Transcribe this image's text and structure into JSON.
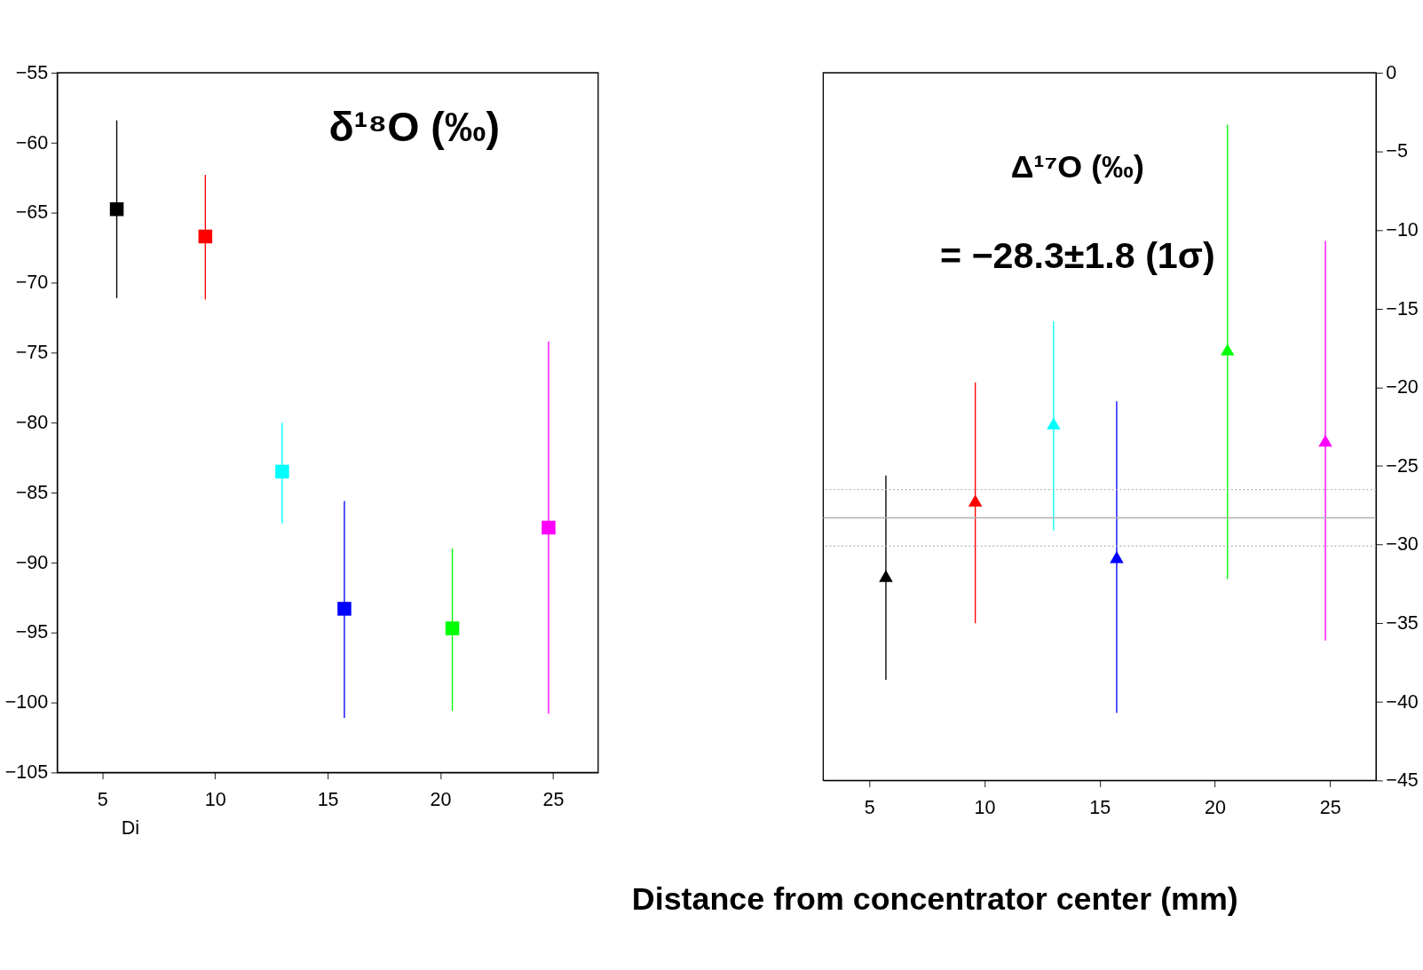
{
  "chart_data": [
    {
      "type": "scatter",
      "xlabel": "Di",
      "x": [
        5.64,
        9.57,
        12.98,
        15.74,
        20.53,
        24.8
      ],
      "values": [
        -64.75,
        -66.7,
        -83.5,
        -93.3,
        -94.7,
        -87.5
      ],
      "colors": [
        "#000000",
        "#ff0000",
        "#00ffff",
        "#0000ff",
        "#00ff00",
        "#ff00ff"
      ],
      "errors": [
        [
          -71.1,
          -58.4
        ],
        [
          -71.2,
          -62.3
        ],
        [
          -87.2,
          -80.0
        ],
        [
          -101.1,
          -85.6
        ],
        [
          -100.6,
          -89.0
        ],
        [
          -100.8,
          -74.2
        ]
      ],
      "marker": "square",
      "xlim": [
        3,
        27
      ],
      "xticks": [
        5,
        10,
        15,
        20,
        25
      ],
      "ylim": [
        -105,
        -55
      ],
      "yticks": [
        -105,
        -100,
        -95,
        -90,
        -85,
        -80,
        -75,
        -70,
        -65,
        -60,
        -55
      ],
      "grid": false,
      "legend": false,
      "annotations": [
        "δ¹⁸O (‰)"
      ]
    },
    {
      "type": "scatter",
      "xlabel": "Distance from concentrator center (mm)",
      "x": [
        5.72,
        9.6,
        13.0,
        15.74,
        20.55,
        24.8
      ],
      "values": [
        -32.0,
        -27.2,
        -22.3,
        -30.8,
        -17.6,
        -23.4
      ],
      "colors": [
        "#000000",
        "#ff0000",
        "#00ffff",
        "#0000ff",
        "#00ff00",
        "#ff00ff"
      ],
      "errors": [
        [
          -38.6,
          -25.6
        ],
        [
          -35.0,
          -19.7
        ],
        [
          -29.1,
          -15.8
        ],
        [
          -40.7,
          -20.9
        ],
        [
          -32.2,
          -3.3
        ],
        [
          -36.1,
          -10.7
        ]
      ],
      "marker": "triangle",
      "xlim": [
        3,
        27
      ],
      "xticks": [
        5,
        10,
        15,
        20,
        25
      ],
      "ylim": [
        -45,
        0
      ],
      "yticks": [
        -45,
        -40,
        -35,
        -30,
        -25,
        -20,
        -15,
        -10,
        -5,
        0
      ],
      "grid": false,
      "legend": false,
      "ref_lines": [
        {
          "axis": "y",
          "value": -28.3,
          "color": "#b0b0b0",
          "line_style": "solid"
        },
        {
          "axis": "y",
          "value": -26.5,
          "color": "#b0b0b0",
          "line_style": "dotted"
        },
        {
          "axis": "y",
          "value": -30.1,
          "color": "#b0b0b0",
          "line_style": "dotted"
        }
      ],
      "annotations": [
        "Δ¹⁷O (‰)",
        "= −28.3±1.8 (1σ)"
      ]
    }
  ]
}
